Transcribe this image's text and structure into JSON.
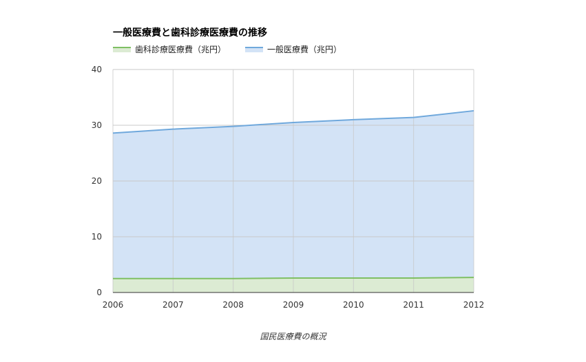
{
  "caption": "国民医療費の概況",
  "colors": {
    "general_line": "#6fa8dc",
    "general_fill": "#d3e3f6",
    "dental_line": "#7ebf63",
    "dental_fill": "#dcebd3",
    "grid": "#c8c8c8",
    "axis": "#333333"
  },
  "chart_data": {
    "type": "area",
    "title": "一般医療費と歯科診療医療費の推移",
    "x": [
      "2006",
      "2007",
      "2008",
      "2009",
      "2010",
      "2011",
      "2012"
    ],
    "series": [
      {
        "name": "歯科診療医療費（兆円）",
        "values": [
          2.5,
          2.5,
          2.5,
          2.6,
          2.6,
          2.6,
          2.7
        ]
      },
      {
        "name": "一般医療費（兆円）",
        "values": [
          28.6,
          29.3,
          29.8,
          30.5,
          31.0,
          31.4,
          32.6
        ]
      }
    ],
    "ylim": [
      0,
      40
    ],
    "yticks": [
      "0",
      "10",
      "20",
      "30",
      "40"
    ],
    "grid": true,
    "legend": "top-left",
    "xlabel": "",
    "ylabel": ""
  }
}
